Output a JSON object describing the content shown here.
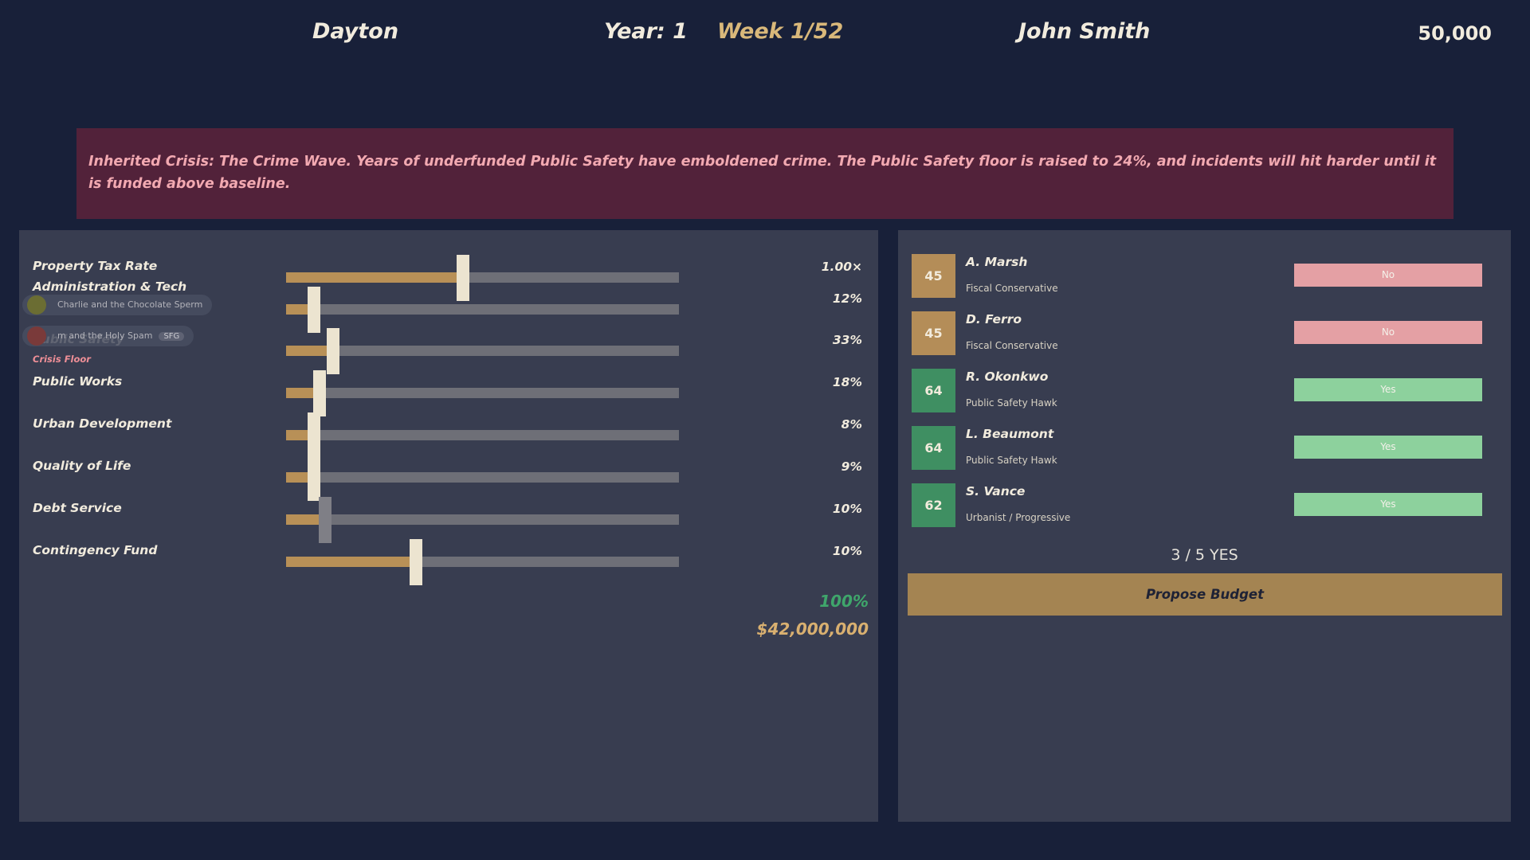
{
  "header": {
    "city": "Dayton",
    "year": "Year: 1",
    "week": "Week 1/52",
    "player": "John Smith",
    "money": "50,000"
  },
  "banner": {
    "text": "Inherited Crisis: The Crime Wave. Years of underfunded Public Safety have emboldened crime. The Public Safety floor is raised to 24%, and incidents will hit harder until it is funded above baseline."
  },
  "budget": {
    "rows": [
      {
        "label": "Property Tax Rate",
        "value": "1.00×",
        "level": 0.45,
        "locked": false
      },
      {
        "label": "Administration & Tech",
        "value": "12%",
        "level": 0.07,
        "locked": false
      },
      {
        "label": "Public Safety",
        "value": "33%",
        "level": 0.12,
        "locked": false,
        "tag": "Crisis Floor"
      },
      {
        "label": "Public Works",
        "value": "18%",
        "level": 0.085,
        "locked": false
      },
      {
        "label": "Urban Development",
        "value": "8%",
        "level": 0.07,
        "locked": false
      },
      {
        "label": "Quality of Life",
        "value": "9%",
        "level": 0.07,
        "locked": false
      },
      {
        "label": "Debt Service",
        "value": "10%",
        "level": 0.1,
        "locked": true
      },
      {
        "label": "Contingency Fund",
        "value": "10%",
        "level": 0.33,
        "locked": false
      }
    ],
    "total_percent": "100%",
    "total_amount": "$42,000,000"
  },
  "toasts": [
    {
      "title": "Charlie and the Chocolate Sperm",
      "disc_color": "#6b6d33"
    },
    {
      "title": "m and the Holy Spam",
      "tag": "SFG",
      "disc_color": "#7a3a3a"
    }
  ],
  "council": {
    "members": [
      {
        "score": "45",
        "name": "A. Marsh",
        "party": "Fiscal Conservative",
        "vote": "No",
        "color": "#b48d58"
      },
      {
        "score": "45",
        "name": "D. Ferro",
        "party": "Fiscal Conservative",
        "vote": "No",
        "color": "#b48d58"
      },
      {
        "score": "64",
        "name": "R. Okonkwo",
        "party": "Public Safety Hawk",
        "vote": "Yes",
        "color": "#3f8f62"
      },
      {
        "score": "64",
        "name": "L. Beaumont",
        "party": "Public Safety Hawk",
        "vote": "Yes",
        "color": "#3f8f62"
      },
      {
        "score": "62",
        "name": "S. Vance",
        "party": "Urbanist / Progressive",
        "vote": "Yes",
        "color": "#3f8f62"
      }
    ],
    "tally": "3 / 5 YES",
    "propose_label": "Propose Budget"
  }
}
